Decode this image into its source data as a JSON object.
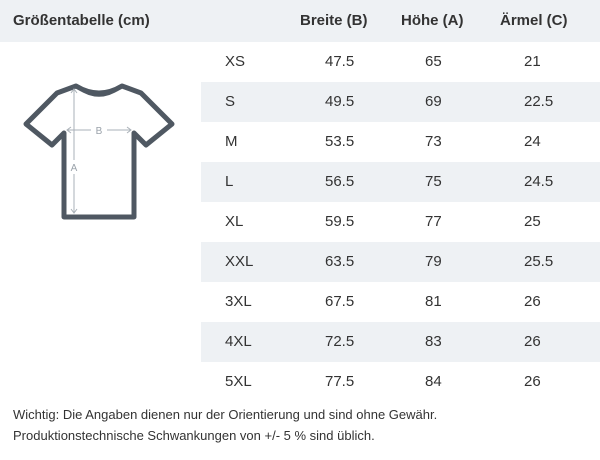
{
  "header": {
    "title": "Größentabelle (cm)",
    "col_breite": "Breite (B)",
    "col_hoehe": "Höhe (A)",
    "col_aermel": "Ärmel (C)"
  },
  "diagram": {
    "label_b": "B",
    "label_a": "A",
    "color": "#4f5862"
  },
  "rows": [
    {
      "size": "XS",
      "breite": "47.5",
      "hoehe": "65",
      "aermel": "21"
    },
    {
      "size": "S",
      "breite": "49.5",
      "hoehe": "69",
      "aermel": "22.5"
    },
    {
      "size": "M",
      "breite": "53.5",
      "hoehe": "73",
      "aermel": "24"
    },
    {
      "size": "L",
      "breite": "56.5",
      "hoehe": "75",
      "aermel": "24.5"
    },
    {
      "size": "XL",
      "breite": "59.5",
      "hoehe": "77",
      "aermel": "25"
    },
    {
      "size": "XXL",
      "breite": "63.5",
      "hoehe": "79",
      "aermel": "25.5"
    },
    {
      "size": "3XL",
      "breite": "67.5",
      "hoehe": "81",
      "aermel": "26"
    },
    {
      "size": "4XL",
      "breite": "72.5",
      "hoehe": "83",
      "aermel": "26"
    },
    {
      "size": "5XL",
      "breite": "77.5",
      "hoehe": "84",
      "aermel": "26"
    }
  ],
  "note": {
    "line1": "Wichtig: Die Angaben dienen nur der Orientierung und sind ohne Gewähr.",
    "line2": "Produktionstechnische Schwankungen von +/- 5 % sind üblich."
  },
  "colors": {
    "header_bg": "#eef1f4",
    "stripe_bg": "#eef1f4",
    "text": "#333333"
  }
}
